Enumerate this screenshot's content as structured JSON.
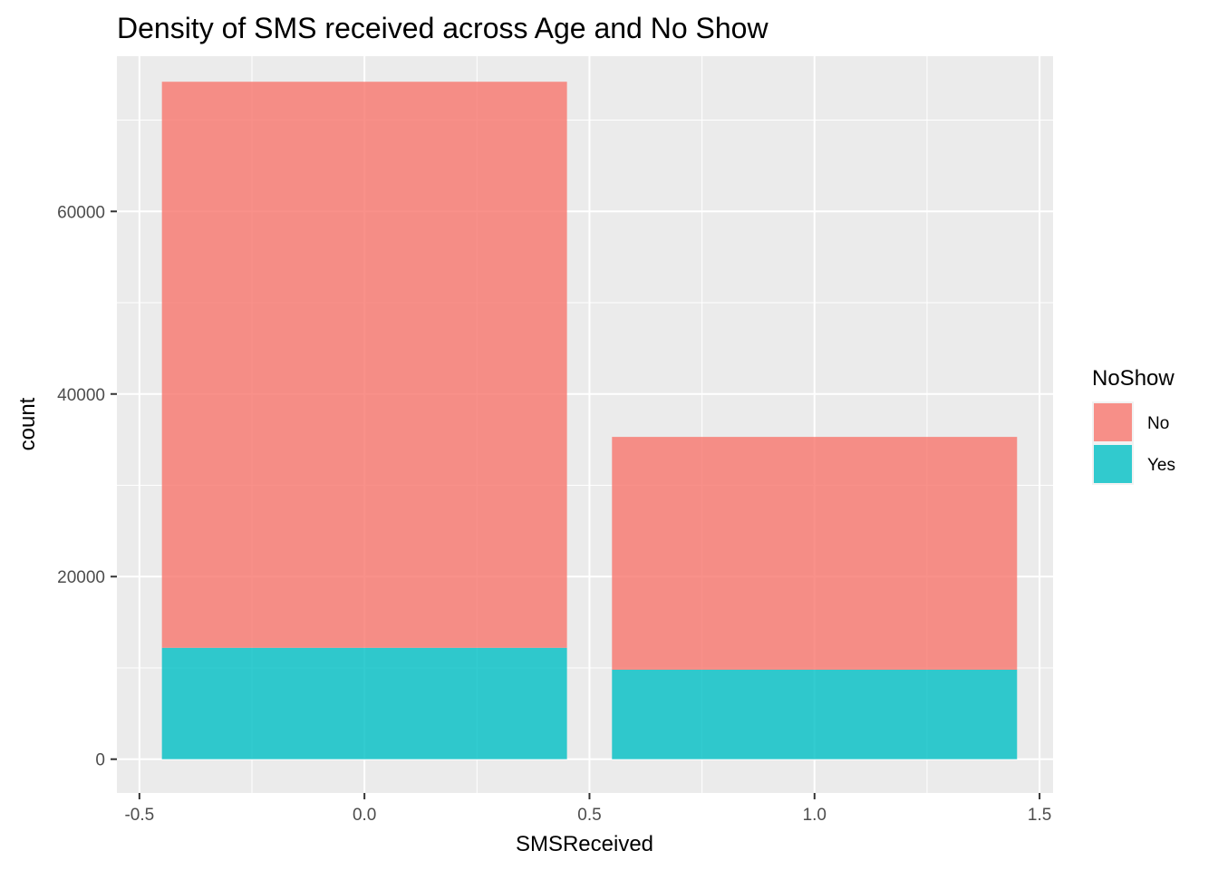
{
  "chart_data": {
    "type": "bar",
    "stacked": true,
    "title": "Density of SMS received across Age and No Show",
    "xlabel": "SMSReceived",
    "ylabel": "count",
    "categories": [
      0,
      1
    ],
    "bar_width": 0.9,
    "series": [
      {
        "name": "No",
        "color": "#F8766D",
        "values": [
          62000,
          25500
        ]
      },
      {
        "name": "Yes",
        "color": "#00BFC4",
        "values": [
          12200,
          9800
        ]
      }
    ],
    "xlim": [
      -0.55,
      1.53
    ],
    "ylim": [
      -3700,
      77000
    ],
    "x_ticks": [
      {
        "value": -0.5,
        "label": "-0.5"
      },
      {
        "value": 0.0,
        "label": "0.0"
      },
      {
        "value": 0.5,
        "label": "0.5"
      },
      {
        "value": 1.0,
        "label": "1.0"
      },
      {
        "value": 1.5,
        "label": "1.5"
      }
    ],
    "y_ticks": [
      {
        "value": 0,
        "label": "0"
      },
      {
        "value": 20000,
        "label": "20000"
      },
      {
        "value": 40000,
        "label": "40000"
      },
      {
        "value": 60000,
        "label": "60000"
      }
    ],
    "x_minor": [
      -0.25,
      0.25,
      0.75,
      1.25
    ],
    "y_minor": [
      10000,
      30000,
      50000,
      70000
    ],
    "grid": true,
    "panel_background": "#EBEBEB",
    "legend": {
      "title": "NoShow",
      "position": "right",
      "items": [
        {
          "label": "No",
          "color": "#F8766D"
        },
        {
          "label": "Yes",
          "color": "#00BFC4"
        }
      ]
    }
  }
}
